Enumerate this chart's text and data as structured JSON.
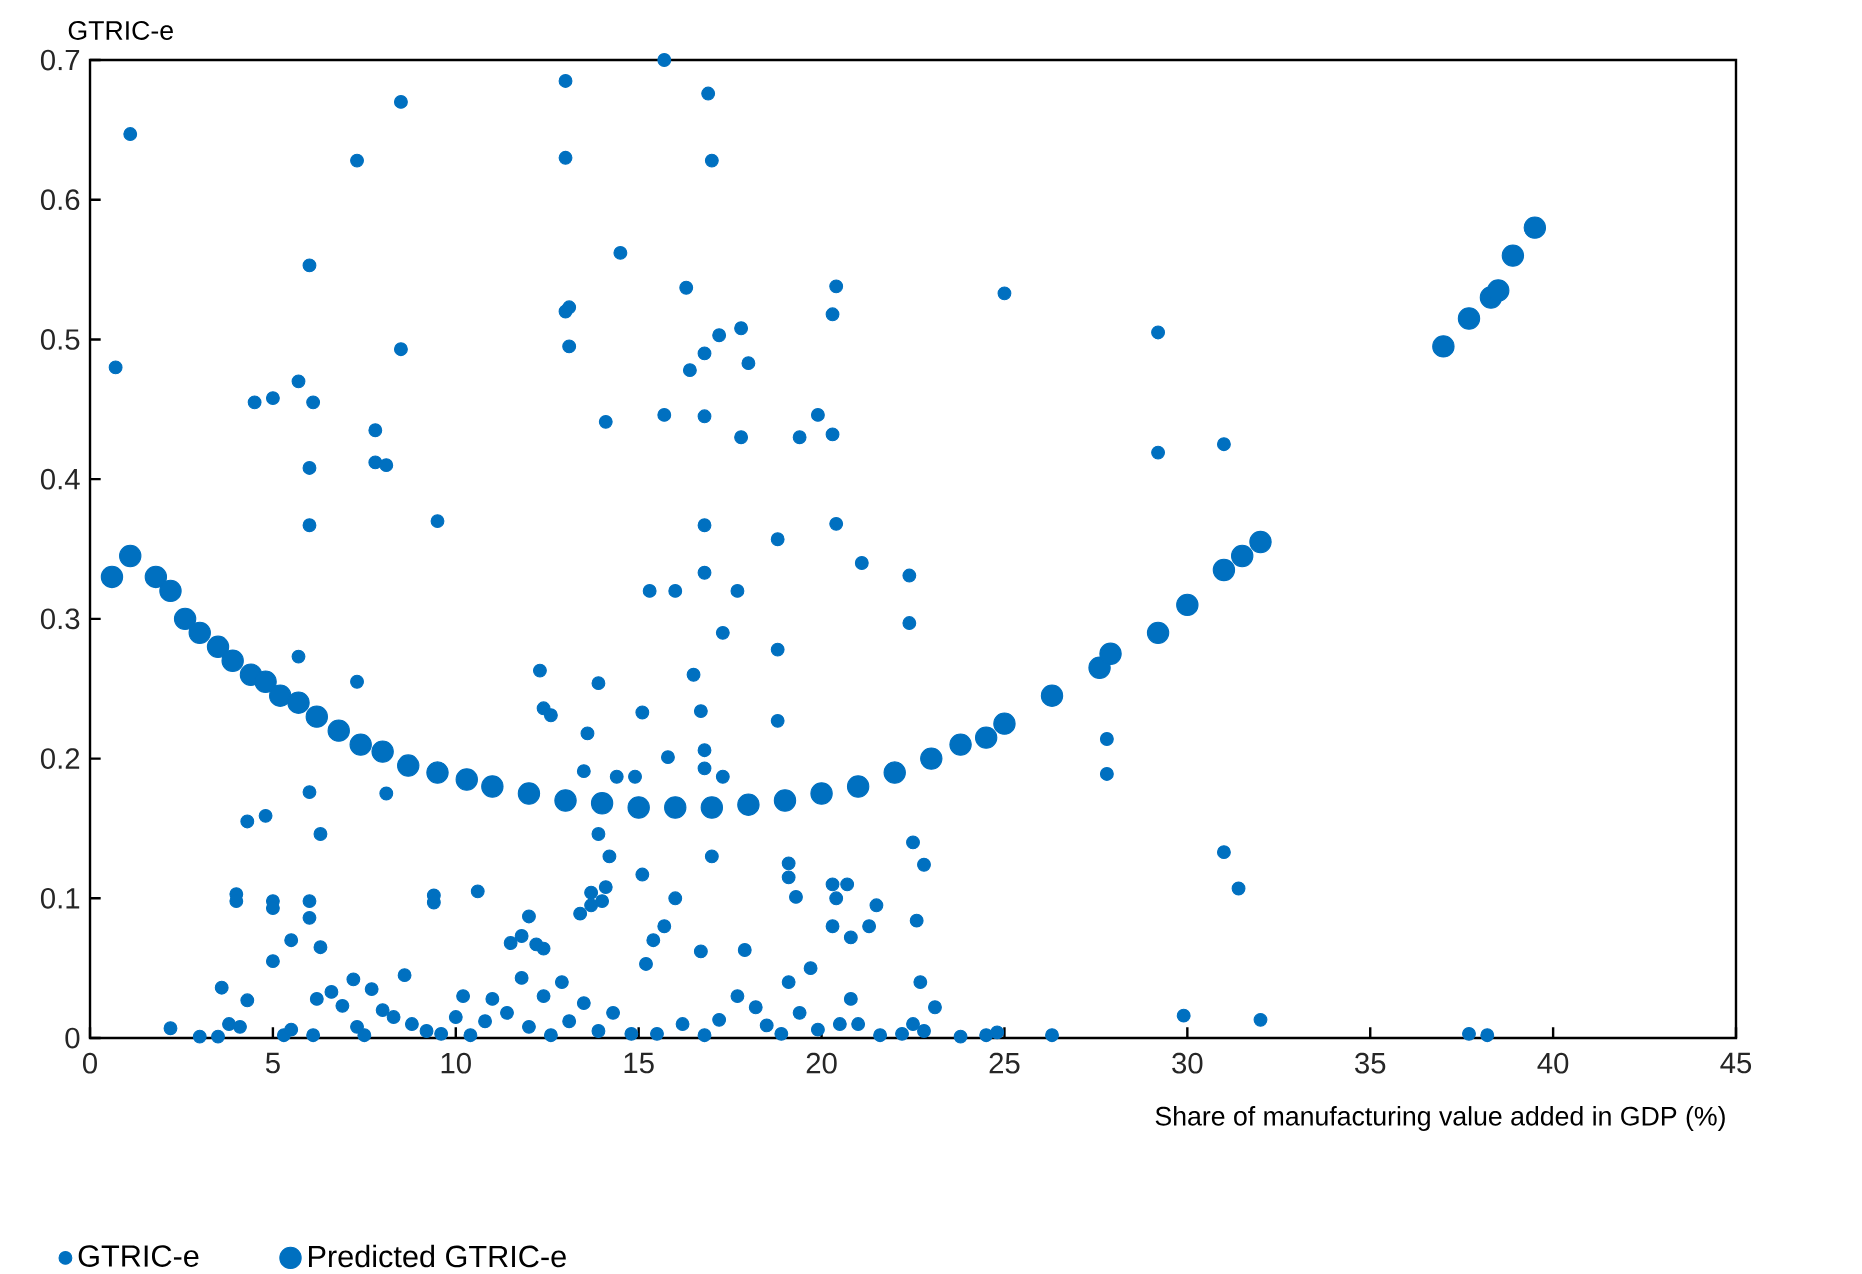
{
  "chart_data": {
    "type": "scatter",
    "ylabel": "GTRIC-e",
    "xlabel": "Share of manufacturing value added in GDP (%)",
    "xlim": [
      0,
      45
    ],
    "xticks": [
      0,
      5,
      10,
      15,
      20,
      25,
      30,
      35,
      40,
      45
    ],
    "ylim": [
      0,
      0.7
    ],
    "yticks": [
      0,
      0.1,
      0.2,
      0.3,
      0.4,
      0.5,
      0.6,
      0.7
    ],
    "legend": "bottom left",
    "grid": false,
    "series": [
      {
        "name": "GTRIC-e",
        "color": "#0070c0",
        "x": [
          0.7,
          1.1,
          7.3,
          8.5,
          13,
          13,
          15.7,
          16.9,
          17,
          14.5,
          13,
          13.1,
          13.1,
          16.3,
          16.8,
          16.4,
          17.2,
          17.8,
          18,
          20.4,
          20.3,
          25,
          29.2,
          6,
          4.5,
          5,
          5.7,
          6.1,
          8.5,
          7.8,
          7.8,
          8.1,
          6,
          6,
          9.5,
          14.1,
          15.7,
          16.8,
          17.8,
          19.4,
          19.9,
          20.3,
          29.2,
          31,
          16.8,
          20.4,
          18.8,
          21.1,
          16.8,
          15.3,
          16,
          17.7,
          22.4,
          22.4,
          17.3,
          18.8,
          16.5,
          12.3,
          5.7,
          7.3,
          13.9,
          15.1,
          16.7,
          18.8,
          12.4,
          12.6,
          13.6,
          15.8,
          16.8,
          17.3,
          16.8,
          13.5,
          14.4,
          14.9,
          27.8,
          27.8,
          6,
          8.1,
          4.3,
          4.8,
          6.3,
          13.9,
          14.2,
          15.1,
          19.1,
          19.1,
          22.8,
          22.5,
          16,
          17,
          13.4,
          13.7,
          14,
          13.7,
          14.1,
          12,
          11.8,
          11.5,
          12.2,
          12.4,
          10.6,
          9.4,
          9.4,
          4,
          4,
          5,
          5,
          6,
          6,
          6.3,
          5.5,
          5,
          15.4,
          15.7,
          15.2,
          16.7,
          17.9,
          19.3,
          19.1,
          19.7,
          20.3,
          20.4,
          20.7,
          20.3,
          20.8,
          21.3,
          21.5,
          22.6,
          23.1,
          22.7,
          21,
          20.5,
          31,
          31.4,
          29.9,
          32,
          37.7,
          38.2,
          26.3,
          24.5,
          24.8,
          23.8,
          2.2,
          3,
          3.5,
          3.6,
          3.8,
          4.1,
          4.3,
          5.3,
          5.5,
          6.1,
          6.2,
          6.6,
          6.9,
          7.2,
          7.3,
          7.5,
          7.7,
          8,
          8.3,
          8.6,
          8.8,
          9.2,
          9.6,
          10,
          10.2,
          10.4,
          10.8,
          11,
          11.4,
          11.8,
          12,
          12.4,
          12.6,
          12.9,
          13.1,
          13.5,
          13.9,
          14.3,
          14.8,
          15.5,
          16.2,
          16.8,
          17.2,
          17.7,
          18.2,
          18.5,
          18.9,
          19.4,
          19.9,
          20.8,
          21.6,
          22.2,
          22.5,
          22.8
        ],
        "values": [
          0.48,
          0.647,
          0.628,
          0.67,
          0.685,
          0.63,
          0.7,
          0.676,
          0.628,
          0.562,
          0.52,
          0.523,
          0.495,
          0.537,
          0.49,
          0.478,
          0.503,
          0.508,
          0.483,
          0.538,
          0.518,
          0.533,
          0.505,
          0.553,
          0.455,
          0.458,
          0.47,
          0.455,
          0.493,
          0.435,
          0.412,
          0.41,
          0.408,
          0.367,
          0.37,
          0.441,
          0.446,
          0.445,
          0.43,
          0.43,
          0.446,
          0.432,
          0.419,
          0.425,
          0.367,
          0.368,
          0.357,
          0.34,
          0.333,
          0.32,
          0.32,
          0.32,
          0.331,
          0.297,
          0.29,
          0.278,
          0.26,
          0.263,
          0.273,
          0.255,
          0.254,
          0.233,
          0.234,
          0.227,
          0.236,
          0.231,
          0.218,
          0.201,
          0.206,
          0.187,
          0.193,
          0.191,
          0.187,
          0.187,
          0.214,
          0.189,
          0.176,
          0.175,
          0.155,
          0.159,
          0.146,
          0.146,
          0.13,
          0.117,
          0.125,
          0.115,
          0.124,
          0.14,
          0.1,
          0.13,
          0.089,
          0.095,
          0.098,
          0.104,
          0.108,
          0.087,
          0.073,
          0.068,
          0.067,
          0.064,
          0.105,
          0.102,
          0.097,
          0.103,
          0.098,
          0.098,
          0.093,
          0.098,
          0.086,
          0.065,
          0.07,
          0.055,
          0.07,
          0.08,
          0.053,
          0.062,
          0.063,
          0.101,
          0.04,
          0.05,
          0.11,
          0.1,
          0.11,
          0.08,
          0.072,
          0.08,
          0.095,
          0.084,
          0.022,
          0.04,
          0.01,
          0.01,
          0.133,
          0.107,
          0.016,
          0.013,
          0.003,
          0.002,
          0.002,
          0.002,
          0.004,
          0.001,
          0.007,
          0.001,
          0.001,
          0.036,
          0.01,
          0.008,
          0.027,
          0.002,
          0.006,
          0.002,
          0.028,
          0.033,
          0.023,
          0.042,
          0.008,
          0.002,
          0.035,
          0.02,
          0.015,
          0.045,
          0.01,
          0.005,
          0.003,
          0.015,
          0.03,
          0.002,
          0.012,
          0.028,
          0.018,
          0.043,
          0.008,
          0.03,
          0.002,
          0.04,
          0.012,
          0.025,
          0.005,
          0.018,
          0.003,
          0.003,
          0.01,
          0.002,
          0.013,
          0.03,
          0.022,
          0.009,
          0.003,
          0.018,
          0.006,
          0.028,
          0.002,
          0.003,
          0.01,
          0.005
        ]
      },
      {
        "name": "Predicted GTRIC-e",
        "color": "#0070c0",
        "x": [
          0.6,
          1.1,
          1.8,
          2.2,
          2.6,
          3.0,
          3.5,
          3.9,
          4.4,
          4.8,
          5.2,
          5.7,
          6.2,
          6.8,
          7.4,
          8,
          8.7,
          9.5,
          10.3,
          11,
          12,
          13,
          14,
          15,
          16,
          17,
          18,
          19,
          20,
          21,
          22,
          23,
          23.8,
          24.5,
          25,
          26.3,
          27.6,
          27.9,
          29.2,
          30,
          31,
          31.5,
          32,
          37,
          37.7,
          38.3,
          38.5,
          38.9,
          39.5
        ],
        "values": [
          0.33,
          0.345,
          0.33,
          0.32,
          0.3,
          0.29,
          0.28,
          0.27,
          0.26,
          0.255,
          0.245,
          0.24,
          0.23,
          0.22,
          0.21,
          0.205,
          0.195,
          0.19,
          0.185,
          0.18,
          0.175,
          0.17,
          0.168,
          0.165,
          0.165,
          0.165,
          0.167,
          0.17,
          0.175,
          0.18,
          0.19,
          0.2,
          0.21,
          0.215,
          0.225,
          0.245,
          0.265,
          0.275,
          0.29,
          0.31,
          0.335,
          0.345,
          0.355,
          0.495,
          0.515,
          0.53,
          0.535,
          0.56,
          0.58
        ]
      }
    ]
  }
}
